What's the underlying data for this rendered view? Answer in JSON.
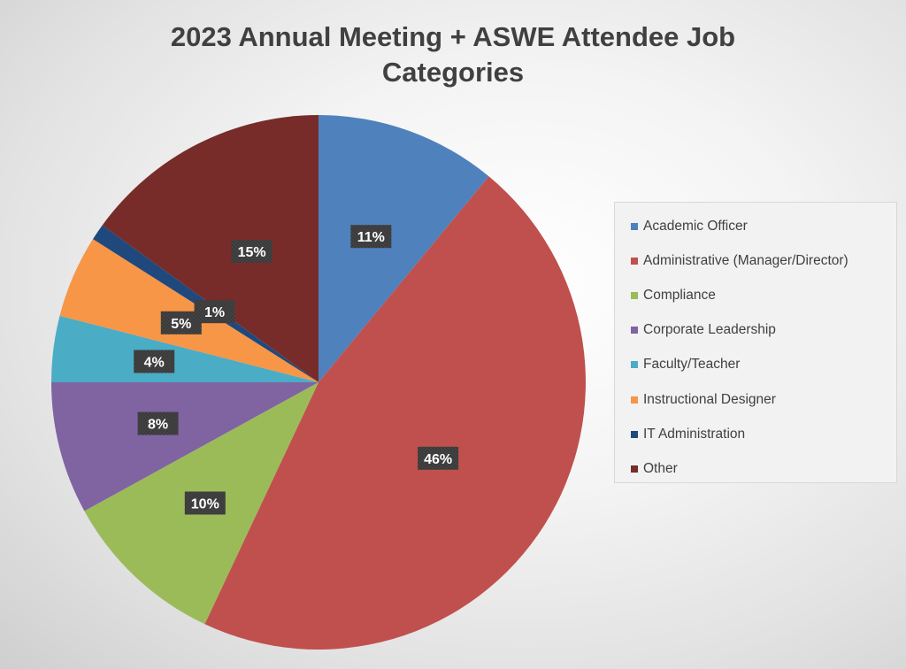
{
  "chart_data": {
    "type": "pie",
    "title_lines": [
      "2023 Annual Meeting + ASWE Attendee Job",
      "Categories"
    ],
    "categories": [
      "Academic Officer",
      "Administrative (Manager/Director)",
      "Compliance",
      "Corporate Leadership",
      "Faculty/Teacher",
      "Instructional Designer",
      "IT Administration",
      "Other"
    ],
    "values": [
      11,
      46,
      10,
      8,
      4,
      5,
      1,
      15
    ],
    "data_labels": [
      "11%",
      "46%",
      "10%",
      "8%",
      "4%",
      "5%",
      "1%",
      "15%"
    ],
    "colors": [
      "#4f81bd",
      "#c0504d",
      "#9bbb59",
      "#8064a2",
      "#4bacc6",
      "#f79646",
      "#1f497d",
      "#772c2a"
    ],
    "start_angle": "12 o'clock",
    "direction": "clockwise",
    "legend_position": "right"
  }
}
